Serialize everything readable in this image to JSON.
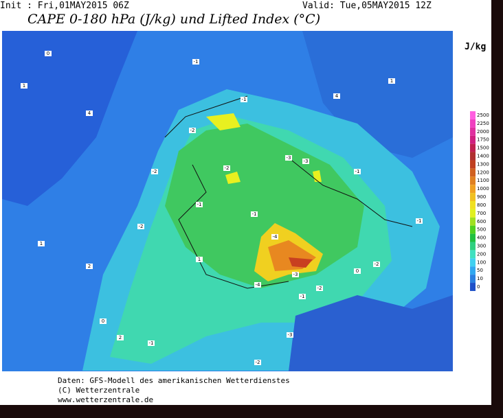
{
  "header": {
    "init": "Init : Fri,01MAY2015 06Z",
    "valid": "Valid: Tue,05MAY2015 12Z",
    "title": "CAPE 0-180 hPa (J/kg) und Lifted Index (°C)"
  },
  "colorbar": {
    "unit": "J/kg",
    "levels": [
      2500,
      2250,
      2000,
      1750,
      1500,
      1400,
      1300,
      1200,
      1100,
      1000,
      900,
      800,
      700,
      600,
      500,
      400,
      300,
      200,
      100,
      50,
      10,
      0
    ],
    "colors": [
      "#ff5ee0",
      "#f040c0",
      "#e030a0",
      "#d02080",
      "#c02050",
      "#b03030",
      "#c04020",
      "#d06020",
      "#e08020",
      "#f0a020",
      "#f0c020",
      "#f0e020",
      "#e0f020",
      "#a0e020",
      "#50d020",
      "#20c040",
      "#30d080",
      "#40e0c0",
      "#40d0f0",
      "#30a8f0",
      "#2a80e0",
      "#1e50c8"
    ]
  },
  "contour_labels": [
    "0",
    "1",
    "4",
    "-1",
    "-1",
    "-2",
    "-3",
    "-2",
    "-1",
    "-2",
    "-3",
    "-1",
    "-2",
    "-4",
    "-3",
    "-4",
    "-2",
    "-1",
    "-1",
    "-2",
    "2",
    "1",
    "0",
    "-1",
    "-2",
    "-3",
    "1",
    "-1",
    "0",
    "2",
    "1",
    "4"
  ],
  "footer": {
    "source": "Daten: GFS-Modell des amerikanischen Wetterdienstes",
    "copyright": "(C) Wetterzentrale",
    "url": "www.wetterzentrale.de"
  }
}
